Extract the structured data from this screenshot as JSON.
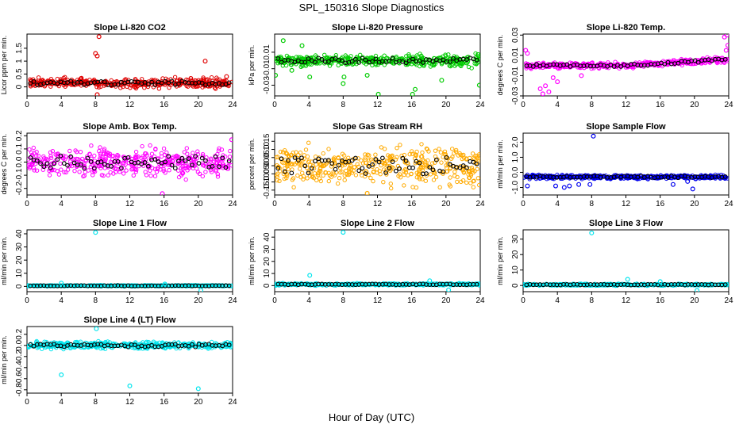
{
  "figure": {
    "title": "SPL_150316  Slope Diagnostics",
    "xlabel": "Hour of Day (UTC)"
  },
  "chart_data": [
    {
      "type": "scatter",
      "title": "Slope Li-820 CO2",
      "ylabel": "Licor ppm per min.",
      "xlim": [
        0,
        24
      ],
      "ylim": [
        -0.35,
        2.05
      ],
      "xticks": [
        0,
        4,
        8,
        12,
        16,
        20,
        24
      ],
      "yticks": [
        0,
        0.5,
        1,
        1.5
      ],
      "ytick_labels": [
        "0",
        "0.5",
        "1",
        "1.5"
      ],
      "color": "#e00000",
      "center": 0.15,
      "spread": 0.25,
      "outliers": [
        [
          8,
          1.3
        ],
        [
          8.2,
          1.2
        ],
        [
          8.4,
          1.95
        ],
        [
          8.2,
          -0.3
        ],
        [
          20.8,
          1.0
        ],
        [
          23.3,
          0.4
        ]
      ]
    },
    {
      "type": "scatter",
      "title": "Slope Li-820 Pressure",
      "ylabel": "kPa per min.",
      "xlim": [
        0,
        24
      ],
      "ylim": [
        -0.043,
        0.032
      ],
      "xticks": [
        0,
        4,
        8,
        12,
        16,
        20,
        24
      ],
      "yticks": [
        -0.03,
        -0.01,
        0.01
      ],
      "ytick_labels": [
        "-0.03",
        "-0.01",
        "0.01"
      ],
      "color": "#00cc00",
      "center": 0.0,
      "spread": 0.01,
      "outliers": [
        [
          0.1,
          -0.018
        ],
        [
          2.0,
          -0.012
        ],
        [
          4.1,
          -0.02
        ],
        [
          8.0,
          -0.028
        ],
        [
          8.1,
          -0.02
        ],
        [
          10.8,
          -0.018
        ],
        [
          12.1,
          -0.041
        ],
        [
          16.1,
          -0.041
        ],
        [
          16.4,
          -0.035
        ],
        [
          19.5,
          -0.024
        ],
        [
          23.9,
          -0.03
        ],
        [
          3.2,
          0.018
        ],
        [
          1.0,
          0.024
        ]
      ]
    },
    {
      "type": "scatter",
      "title": "Slope Li-820 Temp.",
      "ylabel": "degrees C per min.",
      "xlim": [
        0,
        24
      ],
      "ylim": [
        -0.03,
        0.031
      ],
      "xticks": [
        0,
        4,
        8,
        12,
        16,
        20,
        24
      ],
      "yticks": [
        -0.03,
        -0.01,
        0.01,
        0.03
      ],
      "ytick_labels": [
        "-0.03",
        "-0.01",
        "0.01",
        "0.03"
      ],
      "color": "#ff00ff",
      "center": 0.0,
      "spread": 0.004,
      "outliers": [
        [
          0.3,
          0.015
        ],
        [
          0.5,
          0.012
        ],
        [
          2.0,
          -0.023
        ],
        [
          2.3,
          -0.028
        ],
        [
          2.6,
          -0.02
        ],
        [
          3.0,
          -0.026
        ],
        [
          3.5,
          -0.012
        ],
        [
          4.0,
          -0.016
        ],
        [
          6.8,
          -0.01
        ],
        [
          23.5,
          0.028
        ],
        [
          23.8,
          0.03
        ],
        [
          23.9,
          0.02
        ],
        [
          23.7,
          0.015
        ]
      ]
    },
    {
      "type": "scatter",
      "title": "Slope Amb. Box Temp.",
      "ylabel": "degrees C per min.",
      "xlim": [
        0,
        24
      ],
      "ylim": [
        -0.25,
        0.22
      ],
      "xticks": [
        0,
        4,
        8,
        12,
        16,
        20,
        24
      ],
      "yticks": [
        -0.2,
        -0.1,
        0,
        0.1,
        0.2
      ],
      "ytick_labels": [
        "-0.2",
        "-0.1",
        "0.0",
        "0.1",
        "0.2"
      ],
      "color": "#ff00ff",
      "center": 0.0,
      "spread": 0.16,
      "outliers": [
        [
          15.8,
          -0.24
        ],
        [
          23.9,
          0.17
        ]
      ]
    },
    {
      "type": "scatter",
      "title": "Slope Gas Stream RH",
      "ylabel": "percent per min.",
      "xlim": [
        0,
        24
      ],
      "ylim": [
        -0.18,
        0.2
      ],
      "xticks": [
        0,
        4,
        8,
        12,
        16,
        20,
        24
      ],
      "yticks": [
        -0.15,
        -0.1,
        -0.05,
        0,
        0.05,
        0.1,
        0.15
      ],
      "ytick_labels": [
        "-0.15",
        "-0.10",
        "-0.05",
        "0.00",
        "0.05",
        "0.10",
        "0.15"
      ],
      "color": "#ffaa00",
      "center": 0.0,
      "spread": 0.17,
      "outliers": [
        [
          10.8,
          -0.17
        ]
      ]
    },
    {
      "type": "scatter",
      "title": "Slope Sample Flow",
      "ylabel": "ml/min per min.",
      "xlim": [
        0,
        24
      ],
      "ylim": [
        -1.5,
        2.6
      ],
      "xticks": [
        0,
        4,
        8,
        12,
        16,
        20,
        24
      ],
      "yticks": [
        -1,
        0,
        1,
        2
      ],
      "ytick_labels": [
        "-1.0",
        "0.0",
        "1.0",
        "2.0"
      ],
      "color": "#0000ee",
      "center": -0.3,
      "spread": 0.18,
      "outliers": [
        [
          8.2,
          2.4
        ],
        [
          0.5,
          -0.9
        ],
        [
          4.8,
          -1.0
        ],
        [
          5.4,
          -0.9
        ],
        [
          19.8,
          -1.1
        ],
        [
          3.8,
          -0.9
        ],
        [
          6.5,
          -0.8
        ],
        [
          17.5,
          -0.8
        ],
        [
          19.2,
          -0.6
        ],
        [
          7.8,
          -0.8
        ]
      ]
    },
    {
      "type": "scatter",
      "title": "Slope Line 1 Flow",
      "ylabel": "ml/min per min.",
      "xlim": [
        0,
        24
      ],
      "ylim": [
        -4,
        43
      ],
      "xticks": [
        0,
        4,
        8,
        12,
        16,
        20,
        24
      ],
      "yticks": [
        0,
        10,
        20,
        30,
        40
      ],
      "ytick_labels": [
        "0",
        "10",
        "20",
        "30",
        "40"
      ],
      "color": "#00e5ee",
      "center": 0.5,
      "spread": 0.6,
      "outliers": [
        [
          8.0,
          41
        ],
        [
          4.0,
          2.5
        ],
        [
          20.3,
          -3
        ],
        [
          16.1,
          1.8
        ]
      ]
    },
    {
      "type": "scatter",
      "title": "Slope Line 2 Flow",
      "ylabel": "ml/min per min.",
      "xlim": [
        0,
        24
      ],
      "ylim": [
        -5,
        46
      ],
      "xticks": [
        0,
        4,
        8,
        12,
        16,
        20,
        24
      ],
      "yticks": [
        0,
        10,
        20,
        30,
        40
      ],
      "ytick_labels": [
        "0",
        "10",
        "20",
        "30",
        "40"
      ],
      "color": "#00e5ee",
      "center": 1.0,
      "spread": 1.2,
      "outliers": [
        [
          8.0,
          44
        ],
        [
          4.1,
          8.5
        ],
        [
          20.3,
          -3.5
        ],
        [
          18.1,
          4
        ]
      ]
    },
    {
      "type": "scatter",
      "title": "Slope Line 3 Flow",
      "ylabel": "ml/min per min.",
      "xlim": [
        0,
        24
      ],
      "ylim": [
        -4,
        36
      ],
      "xticks": [
        0,
        4,
        8,
        12,
        16,
        20,
        24
      ],
      "yticks": [
        0,
        10,
        20,
        30
      ],
      "ytick_labels": [
        "0",
        "10",
        "20",
        "30"
      ],
      "color": "#00e5ee",
      "center": 0.5,
      "spread": 0.8,
      "outliers": [
        [
          8.0,
          34
        ],
        [
          12.2,
          4
        ],
        [
          20.3,
          -3.2
        ],
        [
          16.0,
          2.5
        ]
      ]
    },
    {
      "type": "scatter",
      "title": "Slope Line 4 (LT) Flow",
      "ylabel": "ml/min per min.",
      "xlim": [
        0,
        24
      ],
      "ylim": [
        -0.86,
        0.34
      ],
      "xticks": [
        0,
        4,
        8,
        12,
        16,
        20,
        24
      ],
      "yticks": [
        -0.8,
        -0.6,
        -0.4,
        -0.2,
        0,
        0.2
      ],
      "ytick_labels": [
        "-0.8",
        "-0.6",
        "-0.4",
        "-0.2",
        "0.0",
        "0.2"
      ],
      "color": "#00e5ee",
      "center": 0.0,
      "spread": 0.09,
      "outliers": [
        [
          4.0,
          -0.53
        ],
        [
          8.1,
          0.3
        ],
        [
          12.0,
          -0.73
        ],
        [
          20.0,
          -0.78
        ]
      ]
    }
  ]
}
